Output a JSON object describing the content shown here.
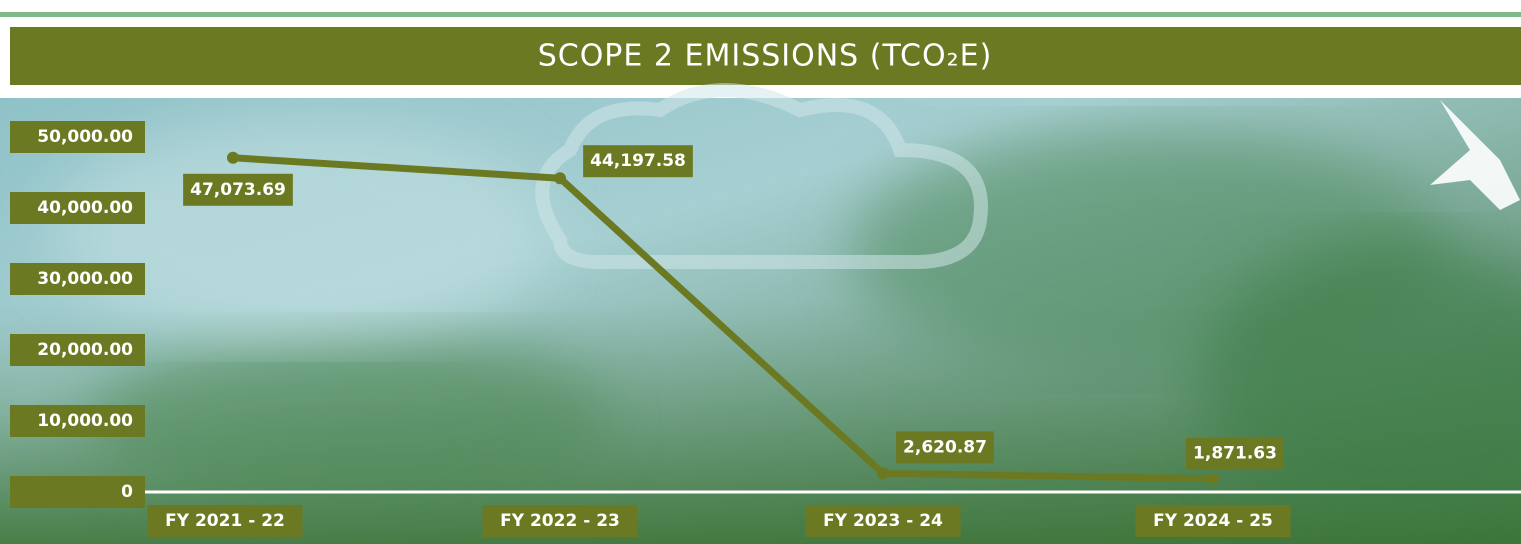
{
  "chart_data": {
    "type": "line",
    "title": "SCOPE 2 EMISSIONS (TCO₂E)",
    "categories": [
      "FY 2021 - 22",
      "FY 2022 - 23",
      "FY 2023 - 24",
      "FY 2024 - 25"
    ],
    "series": [
      {
        "color": "#6b7a22",
        "values": [
          47073.69,
          44197.58,
          2620.87,
          1871.63
        ],
        "value_labels": [
          "47,073.69",
          "44,197.58",
          "2,620.87",
          "1,871.63"
        ]
      }
    ],
    "ylim": [
      0,
      50000
    ],
    "yticks": [
      0,
      {
        "value": 10000,
        "label": "10,000.00"
      },
      {
        "value": 20000,
        "label": "20,000.00"
      },
      {
        "value": 30000,
        "label": "30,000.00"
      },
      {
        "value": 40000,
        "label": "40,000.00"
      },
      {
        "value": 50000,
        "label": "50,000.00"
      }
    ]
  }
}
